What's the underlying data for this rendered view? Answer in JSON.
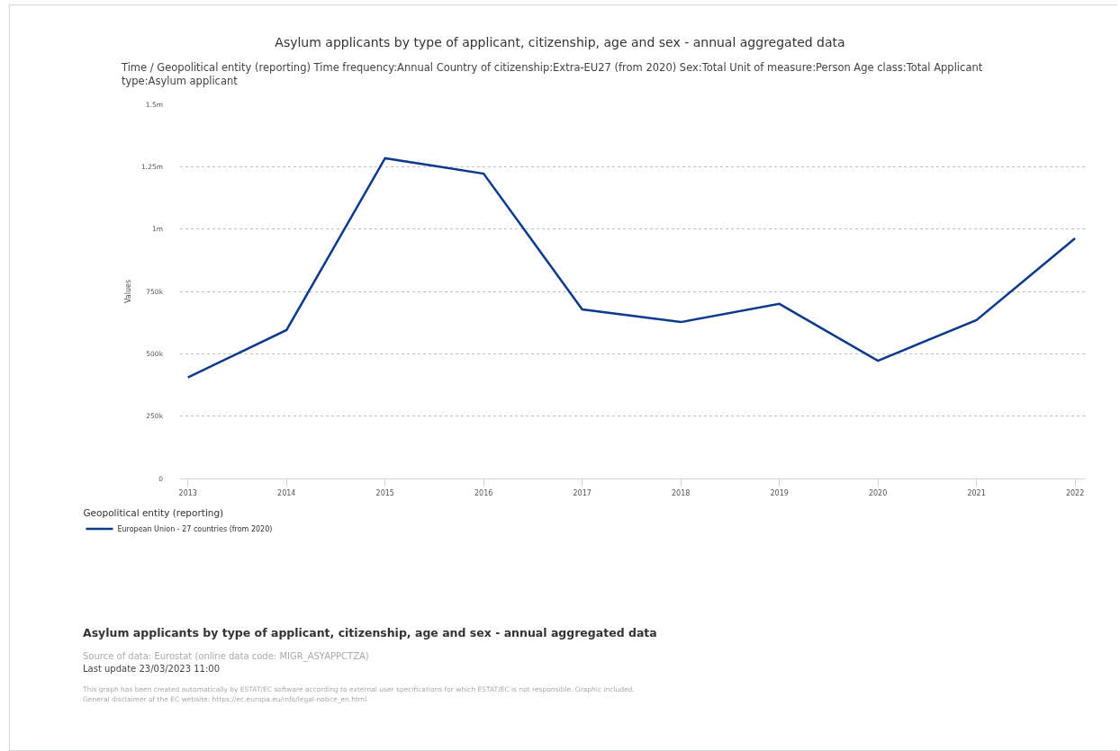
{
  "chart_data": {
    "type": "line",
    "title": "Asylum applicants by type of applicant, citizenship, age and sex - annual aggregated data",
    "subtitle": "Time / Geopolitical entity (reporting)  Time frequency:Annual  Country of citizenship:Extra-EU27 (from 2020)  Sex:Total  Unit of measure:Person  Age class:Total  Applicant type:Asylum applicant",
    "ylabel": "Values",
    "legend_title": "Geopolitical entity (reporting)",
    "categories": [
      "2013",
      "2014",
      "2015",
      "2016",
      "2017",
      "2018",
      "2019",
      "2020",
      "2021",
      "2022"
    ],
    "series": [
      {
        "name": "European Union - 27 countries (from 2020)",
        "color": "#0e3a8c",
        "values": [
          405000,
          595000,
          1284000,
          1222000,
          678000,
          627000,
          700000,
          472000,
          635000,
          963000
        ]
      }
    ],
    "ylim": [
      0,
      1500000
    ],
    "yticks": [
      0,
      {
        "value": 250000,
        "label": "250k"
      },
      {
        "value": 500000,
        "label": "500k"
      },
      {
        "value": 750000,
        "label": "750k"
      },
      {
        "value": 1000000,
        "label": "1m"
      },
      {
        "value": 1250000,
        "label": "1.25m"
      },
      {
        "value": 1500000,
        "label": "1.5m"
      }
    ],
    "grid": "y",
    "legend": "bottom left",
    "marker": "none",
    "line_style": "solid",
    "annotations": [
      "Asylum applicants by type of applicant, citizenship, age and sex - annual aggregated data",
      "Source of data: Eurostat (online data code: MIGR_ASYAPPCTZA)",
      "Last update 23/03/2023 11:00",
      "This graph has been created automatically by ESTAT/EC software according to external user specifications for which ESTAT/EC is not responsible. Graphic included.",
      "General disclaimer of the EC website: https://ec.europa.eu/info/legal-notice_en.html"
    ]
  }
}
